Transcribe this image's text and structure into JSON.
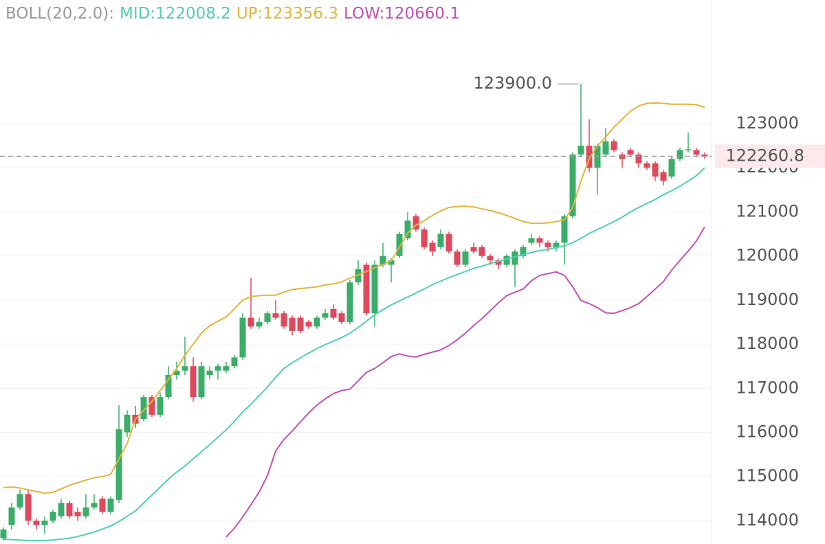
{
  "chart_data": {
    "type": "candlestick",
    "indicator": "BOLL(20,2.0):",
    "indicator_color": "#9a9a9a",
    "up_color": "#3aae68",
    "down_color": "#e0485c",
    "grid": true,
    "ylim": [
      113470,
      125803
    ],
    "yticks": [
      114000,
      115000,
      116000,
      117000,
      118000,
      119000,
      120000,
      121000,
      122000,
      123000
    ],
    "open": [
      113600,
      113900,
      114300,
      114600,
      114000,
      113900,
      114000,
      114100,
      114400,
      114200,
      114100,
      114300,
      114500,
      114200,
      114470,
      116000,
      116400,
      116300,
      116800,
      116400,
      116800,
      117300,
      117400,
      117500,
      116800,
      117300,
      117400,
      117400,
      117500,
      117700,
      118600,
      118400,
      118500,
      118700,
      118700,
      118600,
      118600,
      118500,
      118400,
      118600,
      118800,
      118700,
      118500,
      119400,
      119800,
      118700,
      119800,
      119800,
      120000,
      120400,
      120900,
      120600,
      120300,
      120200,
      120500,
      120100,
      119800,
      120200,
      120200,
      120000,
      119900,
      119800,
      119800,
      120000,
      120300,
      120400,
      120300,
      120200,
      120300,
      120900,
      122300,
      122500,
      122000,
      122300,
      122600,
      122300,
      122400,
      122300,
      122100,
      122100,
      121900,
      121800,
      122200,
      122400,
      122400,
      122300
    ],
    "high": [
      113850,
      114400,
      114700,
      114700,
      114050,
      114100,
      114250,
      114500,
      114450,
      114300,
      114600,
      114600,
      114550,
      114550,
      116620,
      116500,
      116600,
      116850,
      116850,
      116900,
      117500,
      117600,
      118170,
      117700,
      117600,
      117500,
      117550,
      117600,
      117750,
      118700,
      119500,
      118600,
      118750,
      119000,
      118750,
      118650,
      118650,
      118550,
      118650,
      118800,
      118900,
      118750,
      119450,
      119900,
      119850,
      119900,
      120300,
      119950,
      120550,
      121000,
      120950,
      120650,
      120350,
      120600,
      120550,
      120150,
      120150,
      120300,
      120250,
      120050,
      119950,
      120050,
      120150,
      120250,
      120500,
      120450,
      120350,
      120350,
      120950,
      122350,
      123900,
      123100,
      122550,
      122900,
      122650,
      122350,
      122450,
      122350,
      122150,
      122150,
      121950,
      122250,
      122450,
      122800,
      122450,
      122350
    ],
    "low": [
      113550,
      113800,
      114250,
      113900,
      113800,
      113700,
      113950,
      114050,
      114050,
      114000,
      114050,
      114250,
      114150,
      114150,
      114400,
      115900,
      116100,
      116250,
      116350,
      116350,
      116750,
      117200,
      117300,
      116700,
      116750,
      117200,
      117200,
      117350,
      117450,
      117650,
      118350,
      118350,
      118450,
      118550,
      118350,
      118200,
      118250,
      118350,
      118350,
      118550,
      118550,
      118450,
      118450,
      119350,
      118650,
      118400,
      119750,
      119400,
      119950,
      120350,
      120550,
      120150,
      120000,
      120150,
      120050,
      119750,
      119750,
      120050,
      119950,
      119800,
      119700,
      119750,
      119300,
      119950,
      120250,
      120200,
      120100,
      120100,
      119800,
      120850,
      122250,
      121900,
      121400,
      122250,
      122350,
      122000,
      122250,
      122000,
      121950,
      121700,
      121600,
      121750,
      122150,
      122350,
      122250,
      122200
    ],
    "close": [
      113800,
      114300,
      114600,
      114000,
      113900,
      114000,
      114200,
      114400,
      114100,
      114100,
      114300,
      114400,
      114200,
      114500,
      116070,
      116400,
      116200,
      116800,
      116400,
      116800,
      117300,
      117400,
      117500,
      116800,
      117500,
      117400,
      117500,
      117500,
      117700,
      118600,
      118400,
      118500,
      118700,
      118600,
      118400,
      118300,
      118300,
      118400,
      118600,
      118700,
      118600,
      118500,
      119400,
      119700,
      118700,
      119800,
      120000,
      119900,
      120500,
      120800,
      120600,
      120200,
      120100,
      120500,
      120100,
      119800,
      120100,
      120100,
      120000,
      119900,
      119800,
      120000,
      120100,
      120200,
      120400,
      120300,
      120200,
      120300,
      120900,
      122300,
      122500,
      122000,
      122500,
      122600,
      122400,
      122200,
      122300,
      122100,
      122000,
      121800,
      121700,
      122200,
      122400,
      122420,
      122300,
      122260.8
    ],
    "series": [
      {
        "name": "MID:122008.2",
        "color": "#4fcfb3",
        "values": [
          113580,
          113570,
          113560,
          113550,
          113550,
          113550,
          113560,
          113580,
          113600,
          113640,
          113690,
          113740,
          113810,
          113880,
          113980,
          114100,
          114220,
          114400,
          114580,
          114760,
          114940,
          115100,
          115240,
          115400,
          115560,
          115720,
          115890,
          116060,
          116250,
          116460,
          116640,
          116830,
          117030,
          117250,
          117450,
          117580,
          117690,
          117800,
          117900,
          117990,
          118070,
          118150,
          118250,
          118380,
          118520,
          118670,
          118780,
          118890,
          118980,
          119070,
          119160,
          119250,
          119350,
          119430,
          119510,
          119580,
          119650,
          119720,
          119770,
          119830,
          119880,
          119930,
          119980,
          120030,
          120080,
          120120,
          120150,
          120190,
          120230,
          120300,
          120400,
          120510,
          120600,
          120690,
          120780,
          120880,
          121000,
          121100,
          121190,
          121280,
          121390,
          121480,
          121580,
          121700,
          121820,
          122000
        ]
      },
      {
        "name": "UP:123356.3",
        "color": "#e4b43c",
        "values": [
          114750,
          114760,
          114740,
          114700,
          114660,
          114620,
          114640,
          114720,
          114800,
          114860,
          114920,
          114970,
          115000,
          115050,
          115400,
          115750,
          116300,
          116500,
          116700,
          116950,
          117200,
          117450,
          117750,
          118000,
          118250,
          118420,
          118520,
          118620,
          118800,
          119000,
          119080,
          119100,
          119110,
          119110,
          119180,
          119240,
          119260,
          119280,
          119300,
          119340,
          119370,
          119410,
          119500,
          119570,
          119650,
          119730,
          119810,
          119890,
          120200,
          120520,
          120700,
          120800,
          120920,
          121020,
          121100,
          121120,
          121130,
          121110,
          121070,
          121030,
          120980,
          120920,
          120850,
          120780,
          120740,
          120740,
          120750,
          120780,
          120820,
          121100,
          121700,
          122200,
          122500,
          122700,
          122920,
          123100,
          123280,
          123400,
          123460,
          123470,
          123460,
          123440,
          123440,
          123440,
          123430,
          123370
        ]
      },
      {
        "name": "LOW:120660.1",
        "color": "#c64fb3",
        "values": [
          null,
          null,
          null,
          null,
          null,
          null,
          null,
          null,
          null,
          null,
          null,
          null,
          null,
          null,
          null,
          null,
          null,
          null,
          null,
          null,
          null,
          null,
          null,
          null,
          null,
          null,
          null,
          113630,
          113830,
          114080,
          114360,
          114650,
          115020,
          115580,
          115840,
          116030,
          116240,
          116440,
          116620,
          116760,
          116880,
          116950,
          116980,
          117170,
          117360,
          117450,
          117580,
          117720,
          117780,
          117730,
          117710,
          117770,
          117820,
          117870,
          117970,
          118100,
          118250,
          118420,
          118580,
          118760,
          118940,
          119100,
          119180,
          119250,
          119440,
          119560,
          119600,
          119640,
          119560,
          119300,
          118990,
          118920,
          118830,
          118710,
          118700,
          118760,
          118830,
          118920,
          119080,
          119250,
          119420,
          119680,
          119900,
          120110,
          120340,
          120660
        ]
      }
    ],
    "max_marker": {
      "value": 123900,
      "label": "123900.0"
    },
    "last_price": 122260.8,
    "last_price_color": "#e0485c"
  }
}
